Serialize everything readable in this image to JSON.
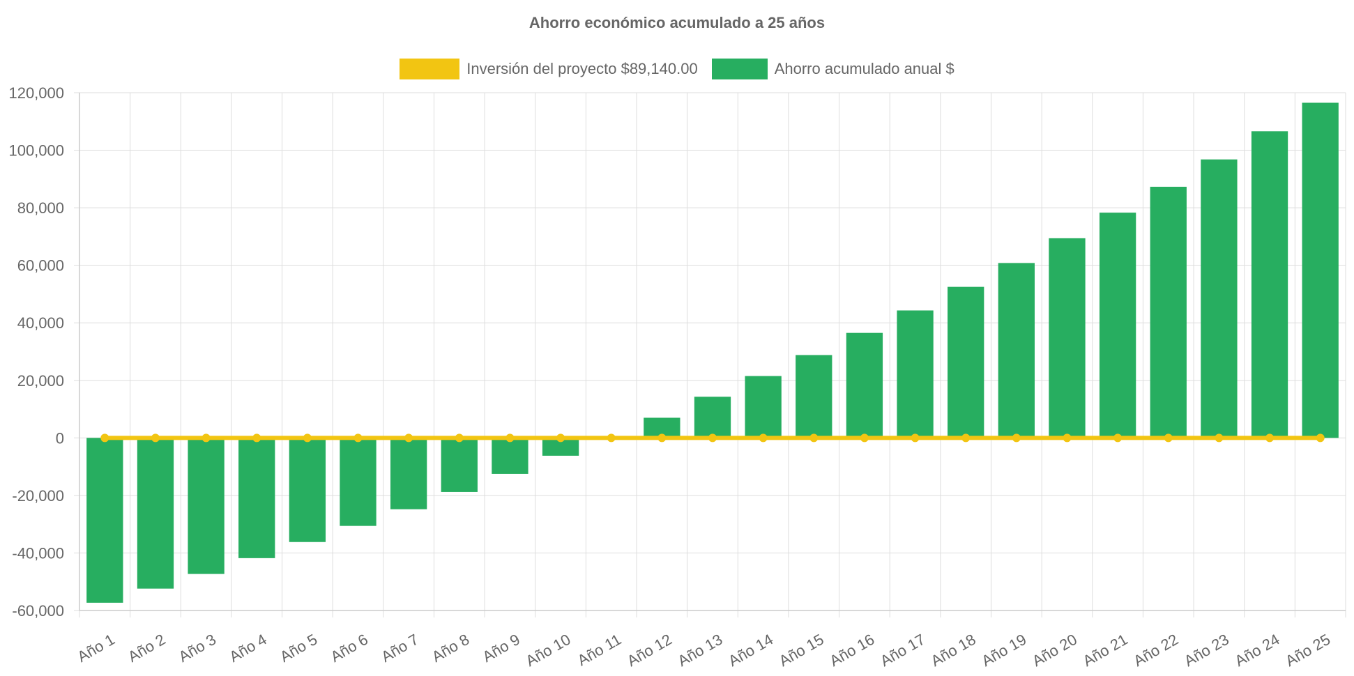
{
  "chart_data": {
    "type": "bar",
    "title": "Ahorro económico acumulado a 25 años",
    "categories": [
      "Año 1",
      "Año 2",
      "Año 3",
      "Año 4",
      "Año 5",
      "Año 6",
      "Año 7",
      "Año 8",
      "Año 9",
      "Año 10",
      "Año 11",
      "Año 12",
      "Año 13",
      "Año 14",
      "Año 15",
      "Año 16",
      "Año 17",
      "Año 18",
      "Año 19",
      "Año 20",
      "Año 21",
      "Año 22",
      "Año 23",
      "Año 24",
      "Año 25"
    ],
    "series": [
      {
        "name": "Inversión del proyecto $89,140.00",
        "type": "line",
        "color": "#f2c512",
        "values": [
          0,
          0,
          0,
          0,
          0,
          0,
          0,
          0,
          0,
          0,
          0,
          0,
          0,
          0,
          0,
          0,
          0,
          0,
          0,
          0,
          0,
          0,
          0,
          0,
          0
        ]
      },
      {
        "name": "Ahorro acumulado anual $",
        "type": "bar",
        "color": "#27ae60",
        "values": [
          -57300,
          -52400,
          -47300,
          -41800,
          -36200,
          -30600,
          -24800,
          -18800,
          -12500,
          -6200,
          0,
          7000,
          14300,
          21500,
          28800,
          36500,
          44300,
          52500,
          60800,
          69400,
          78300,
          87300,
          96800,
          106600,
          116500
        ]
      }
    ],
    "yticks": [
      "120,000",
      "100,000",
      "80,000",
      "60,000",
      "40,000",
      "20,000",
      "0",
      "-20,000",
      "-40,000",
      "-60,000"
    ],
    "ylim": [
      -60000,
      120000
    ],
    "xlabel": "",
    "ylabel": "",
    "grid": true,
    "legend_position": "top"
  }
}
